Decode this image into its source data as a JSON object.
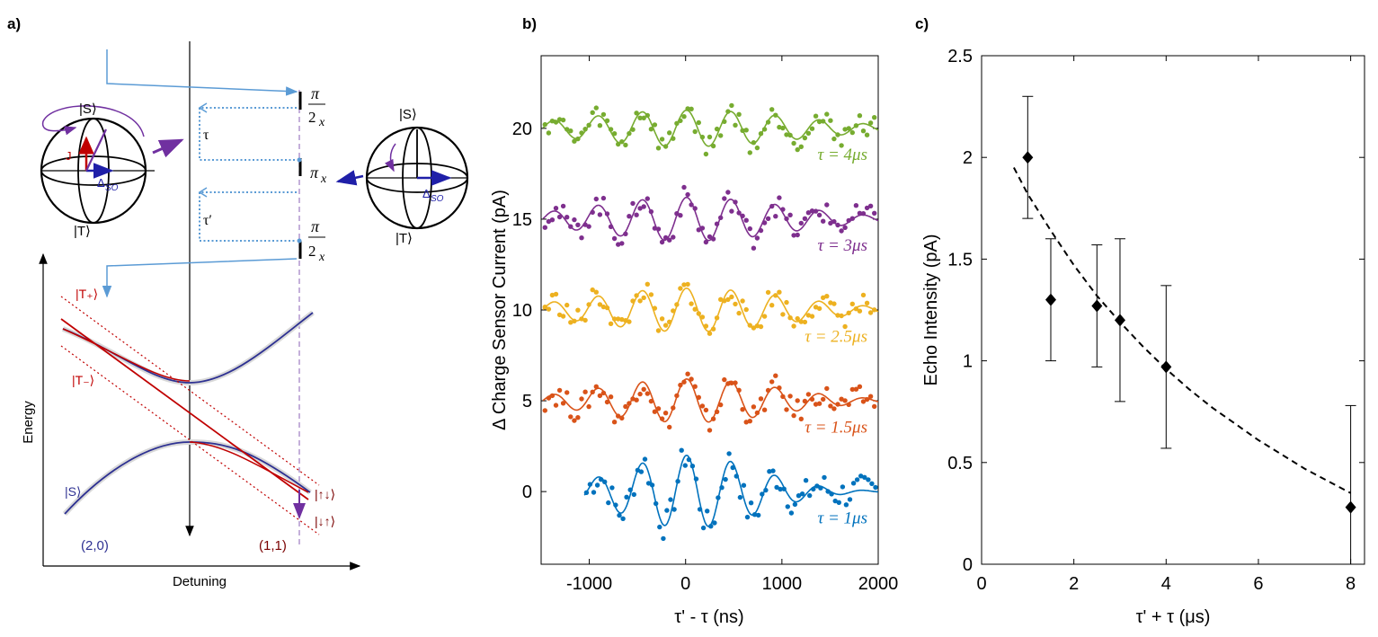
{
  "panel_a": {
    "label": "a)",
    "energy_label": "Energy",
    "detuning_label": "Detuning",
    "left_region": "(2,0)",
    "right_region": "(1,1)",
    "state_Tplus": "|T₊⟩",
    "state_Tminus": "|T₋⟩",
    "state_S_lower": "|S⟩",
    "state_updown": "|↑↓⟩",
    "state_downup": "|↓↑⟩",
    "bloch_left": {
      "top": "|S⟩",
      "bottom": "|T⟩",
      "j": "J",
      "delta": "Δ",
      "delta_sub": "SO"
    },
    "bloch_right": {
      "top": "|S⟩",
      "bottom": "|T⟩",
      "delta": "Δ",
      "delta_sub": "SO"
    },
    "tau": "τ",
    "tau_prime": "τ′",
    "pi": "π",
    "pulse_sub_x": "x",
    "half_denominator": "2",
    "colors": {
      "blue_line": "#5b9bd5",
      "red": "#c00000",
      "navy": "#2e3192",
      "purple": "#7030a0"
    }
  },
  "panel_b": {
    "label": "b)",
    "colors": [
      "#0072bd",
      "#d95319",
      "#edb120",
      "#7e2f8e",
      "#77ac30"
    ]
  },
  "panel_c": {
    "label": "c)"
  },
  "chart_data": [
    {
      "type": "scatter",
      "panel": "b",
      "xlabel": "τ' - τ (ns)",
      "ylabel": "Δ Charge Sensor Current (pA)",
      "xlim": [
        -1500,
        2000
      ],
      "ylim": [
        -4,
        24
      ],
      "xticks": [
        -1000,
        0,
        1000,
        2000
      ],
      "xtick_labels": [
        "-1000",
        "0",
        "1000",
        "2000"
      ],
      "yticks": [
        0,
        5,
        10,
        15,
        20
      ],
      "ytick_labels": [
        "0",
        "5",
        "10",
        "15",
        "20"
      ],
      "series": [
        {
          "name": "τ = 1μs",
          "offset": 0,
          "xstart": -1050,
          "amp": 2.0,
          "decay": 700,
          "label_y": -1.4
        },
        {
          "name": "τ = 1.5μs",
          "offset": 5,
          "xstart": -1480,
          "amp": 1.2,
          "decay": 900,
          "label_y": 3.6
        },
        {
          "name": "τ = 2.5μs",
          "offset": 10,
          "xstart": -1480,
          "amp": 1.2,
          "decay": 1000,
          "label_y": 8.6
        },
        {
          "name": "τ = 3μs",
          "offset": 15,
          "xstart": -1480,
          "amp": 1.2,
          "decay": 1000,
          "label_y": 13.6
        },
        {
          "name": "τ = 4μs",
          "offset": 20,
          "xstart": -1480,
          "amp": 1.0,
          "decay": 1100,
          "label_y": 18.6
        }
      ],
      "period_ns": 460
    },
    {
      "type": "scatter",
      "panel": "c",
      "xlabel": "τ' + τ (μs)",
      "ylabel": "Echo Intensity (pA)",
      "xlim": [
        0,
        8.3
      ],
      "ylim": [
        0,
        2.5
      ],
      "xticks": [
        0,
        2,
        4,
        6,
        8
      ],
      "xtick_labels": [
        "0",
        "2",
        "4",
        "6",
        "8"
      ],
      "yticks": [
        0,
        0.5,
        1,
        1.5,
        2,
        2.5
      ],
      "ytick_labels": [
        "0",
        "0.5",
        "1",
        "1.5",
        "2",
        "2.5"
      ],
      "x": [
        1,
        1.5,
        2.5,
        3,
        4,
        8
      ],
      "y": [
        2.0,
        1.3,
        1.27,
        1.2,
        0.97,
        0.28
      ],
      "err_low": [
        1.7,
        1.0,
        0.97,
        0.8,
        0.57,
        0.0
      ],
      "err_high": [
        2.3,
        1.6,
        1.57,
        1.6,
        1.37,
        0.78
      ],
      "fit": {
        "type": "exponential decay",
        "x": [
          0.7,
          1,
          1.5,
          2,
          2.5,
          3,
          3.5,
          4,
          4.5,
          5,
          5.5,
          6,
          6.5,
          7,
          7.5,
          8
        ],
        "y": [
          1.95,
          1.82,
          1.64,
          1.47,
          1.32,
          1.19,
          1.07,
          0.96,
          0.86,
          0.77,
          0.69,
          0.61,
          0.54,
          0.47,
          0.41,
          0.35
        ]
      }
    }
  ]
}
